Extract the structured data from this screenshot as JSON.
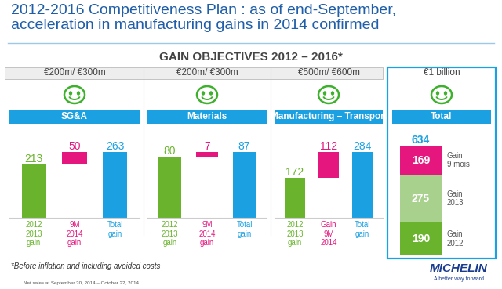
{
  "title": "2012-2016 Competitiveness Plan : as of end-September,\nacceleration in manufacturing gains in 2014 confirmed",
  "header": "GAIN OBJECTIVES 2012 – 2016*",
  "footnote": "*Before inflation and including avoided costs",
  "source": "Net sales at September 30, 2014 – October 22, 2014",
  "logo": "MICHELIN",
  "tagline": "A better way forward",
  "chart_data": [
    {
      "type": "waterfall",
      "subtitle": "€200m/ €300m",
      "title": "SG&A",
      "categories": [
        "2012\n2013\ngain",
        "9M\n2014\ngain",
        "Total\ngain"
      ],
      "values": [
        213,
        50,
        263
      ],
      "colors": [
        "#6ab42d",
        "#e5177e",
        "#1ba1e2"
      ],
      "data_labels": true,
      "tick_labels": "x"
    },
    {
      "type": "waterfall",
      "subtitle": "€200m/ €300m",
      "title": "Materials",
      "categories": [
        "2012\n2013\ngain",
        "9M\n2014\ngain",
        "Total\ngain"
      ],
      "values": [
        80,
        7,
        87
      ],
      "colors": [
        "#6ab42d",
        "#e5177e",
        "#1ba1e2"
      ],
      "data_labels": true,
      "tick_labels": "x"
    },
    {
      "type": "waterfall",
      "subtitle": "€500m/ €600m",
      "title": "Manufacturing – Transport",
      "categories": [
        "2012\n2013\ngain",
        "Gain\n9M\n2014",
        "Total\ngain"
      ],
      "values": [
        172,
        112,
        284
      ],
      "colors": [
        "#6ab42d",
        "#e5177e",
        "#1ba1e2"
      ],
      "data_labels": true,
      "tick_labels": "x"
    },
    {
      "type": "bar",
      "stacked": true,
      "subtitle": "€1 billion",
      "title": "Total",
      "categories": [
        null
      ],
      "series": [
        {
          "name": "Gain\n2012",
          "color": "#6ab42d",
          "values": [
            190
          ]
        },
        {
          "name": "Gain\n2013",
          "color": "#a9d18e",
          "values": [
            275
          ]
        },
        {
          "name": "Gain\n9 mois",
          "color": "#e5177e",
          "values": [
            169
          ]
        }
      ],
      "total": 634,
      "total_color": "#1ba1e2",
      "data_labels": true,
      "tick_labels": false
    }
  ]
}
